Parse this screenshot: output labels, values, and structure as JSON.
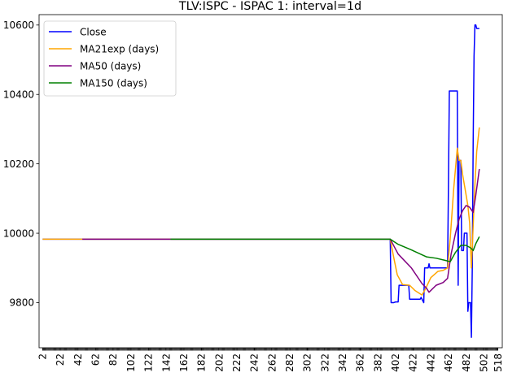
{
  "chart_data": {
    "type": "line",
    "title": "TLV:ISPC - ISPAC 1: interval=1d",
    "xlabel": "",
    "ylabel": "",
    "xlim": [
      -2,
      523
    ],
    "ylim": [
      9670,
      10630
    ],
    "xticks": [
      2,
      22,
      42,
      62,
      82,
      102,
      122,
      142,
      162,
      182,
      202,
      222,
      242,
      262,
      282,
      302,
      322,
      342,
      362,
      382,
      402,
      422,
      442,
      462,
      482,
      502,
      518
    ],
    "yticks": [
      9800,
      10000,
      10200,
      10400,
      10600
    ],
    "ytick_labels": [
      "9800",
      "10000",
      "10200",
      "10400",
      "10600"
    ],
    "grid": false,
    "legend": "top-left",
    "series": [
      {
        "name": "Close",
        "color": "#0000ff",
        "points": [
          [
            2,
            9983
          ],
          [
            396,
            9983
          ],
          [
            397,
            9800
          ],
          [
            400,
            9800
          ],
          [
            402,
            9802
          ],
          [
            405,
            9802
          ],
          [
            406,
            9850
          ],
          [
            417,
            9850
          ],
          [
            418,
            9810
          ],
          [
            430,
            9810
          ],
          [
            431,
            9815
          ],
          [
            434,
            9800
          ],
          [
            435,
            9900
          ],
          [
            439,
            9900
          ],
          [
            440,
            9912
          ],
          [
            441,
            9900
          ],
          [
            461,
            9900
          ],
          [
            462,
            10140
          ],
          [
            463,
            10410
          ],
          [
            472,
            10410
          ],
          [
            473,
            9850
          ],
          [
            474,
            10210
          ],
          [
            476,
            10210
          ],
          [
            477,
            9950
          ],
          [
            479,
            9950
          ],
          [
            480,
            10000
          ],
          [
            483,
            10000
          ],
          [
            484,
            9775
          ],
          [
            485,
            9800
          ],
          [
            487,
            9800
          ],
          [
            488,
            9700
          ],
          [
            489,
            9900
          ],
          [
            490,
            10260
          ],
          [
            491,
            10510
          ],
          [
            492,
            10600
          ],
          [
            493,
            10600
          ],
          [
            494,
            10590
          ],
          [
            497,
            10590
          ]
        ]
      },
      {
        "name": "MA21exp (days)",
        "color": "#ffa500",
        "points": [
          [
            2,
            9983
          ],
          [
            396,
            9983
          ],
          [
            400,
            9930
          ],
          [
            404,
            9880
          ],
          [
            410,
            9852
          ],
          [
            418,
            9850
          ],
          [
            424,
            9835
          ],
          [
            432,
            9822
          ],
          [
            436,
            9840
          ],
          [
            442,
            9872
          ],
          [
            450,
            9890
          ],
          [
            456,
            9893
          ],
          [
            461,
            9900
          ],
          [
            464,
            9985
          ],
          [
            468,
            10130
          ],
          [
            472,
            10245
          ],
          [
            474,
            10210
          ],
          [
            476,
            10210
          ],
          [
            478,
            10170
          ],
          [
            481,
            10125
          ],
          [
            484,
            10080
          ],
          [
            486,
            10030
          ],
          [
            488,
            9900
          ],
          [
            490,
            10020
          ],
          [
            492,
            10140
          ],
          [
            494,
            10235
          ],
          [
            497,
            10305
          ]
        ]
      },
      {
        "name": "MA50 (days)",
        "color": "#800080",
        "points": [
          [
            47,
            9983
          ],
          [
            396,
            9983
          ],
          [
            405,
            9940
          ],
          [
            420,
            9900
          ],
          [
            432,
            9855
          ],
          [
            437,
            9842
          ],
          [
            440,
            9830
          ],
          [
            448,
            9850
          ],
          [
            456,
            9858
          ],
          [
            461,
            9870
          ],
          [
            465,
            9940
          ],
          [
            470,
            10000
          ],
          [
            474,
            10040
          ],
          [
            478,
            10065
          ],
          [
            482,
            10080
          ],
          [
            486,
            10075
          ],
          [
            490,
            10060
          ],
          [
            493,
            10110
          ],
          [
            497,
            10185
          ]
        ]
      },
      {
        "name": "MA150 (days)",
        "color": "#008000",
        "points": [
          [
            147,
            9983
          ],
          [
            396,
            9983
          ],
          [
            405,
            9968
          ],
          [
            420,
            9952
          ],
          [
            437,
            9932
          ],
          [
            448,
            9928
          ],
          [
            458,
            9922
          ],
          [
            464,
            9918
          ],
          [
            470,
            9945
          ],
          [
            476,
            9965
          ],
          [
            482,
            9965
          ],
          [
            487,
            9958
          ],
          [
            490,
            9950
          ],
          [
            493,
            9970
          ],
          [
            497,
            9990
          ]
        ]
      }
    ]
  }
}
